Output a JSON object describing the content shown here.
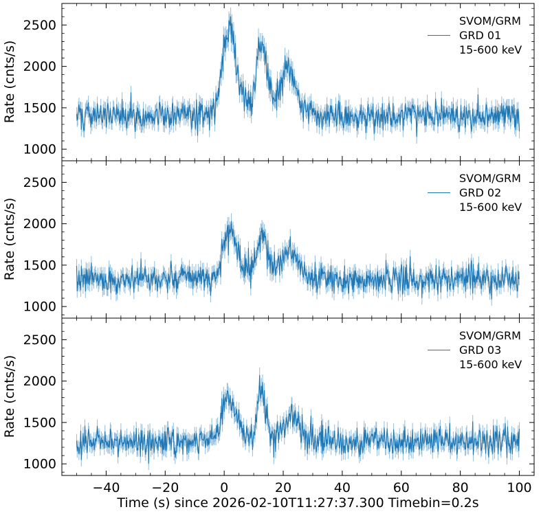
{
  "figure": {
    "background": "#ffffff",
    "axis_color": "#000000",
    "text_color": "#000000"
  },
  "chart_data": {
    "type": "line",
    "title": "",
    "xlabel": "Time (s) since 2026-02-10T11:27:37.300 Timebin=0.2s",
    "ylabel": "Rate (cnts/s)",
    "xlim": [
      -55,
      105
    ],
    "ylim": [
      860,
      2760
    ],
    "xticks": [
      -40,
      -20,
      0,
      20,
      40,
      60,
      80,
      100
    ],
    "yticks": [
      1000,
      1500,
      2000,
      2500
    ],
    "x_minor_step": 5,
    "y_minor_step": 100,
    "grid": false,
    "legend_position": "upper right",
    "line_color": "#1f77b4",
    "errorbar_color": "#1f77b4",
    "errorbar_opacity": 0.45,
    "time_start": -50,
    "time_end": 100,
    "timebin": 0.2,
    "panels": [
      {
        "name": "GRD 01",
        "legend": [
          "SVOM/GRM",
          "GRD 01",
          "15-600 keV"
        ],
        "baseline": 1410,
        "seed": 101,
        "pulses": [
          {
            "t0": 1.3,
            "amp": 1000,
            "rise": 2.0,
            "decay": 2.6
          },
          {
            "t0": 12.2,
            "amp": 700,
            "rise": 1.3,
            "decay": 2.2
          },
          {
            "t0": 21.5,
            "amp": 450,
            "rise": 1.8,
            "decay": 2.5
          },
          {
            "t0": 13.0,
            "amp": 180,
            "rise": 7.0,
            "decay": 9.0
          }
        ]
      },
      {
        "name": "GRD 02",
        "legend": [
          "SVOM/GRM",
          "GRD 02",
          "15-600 keV"
        ],
        "baseline": 1330,
        "seed": 202,
        "pulses": [
          {
            "t0": 1.3,
            "amp": 560,
            "rise": 2.0,
            "decay": 2.6
          },
          {
            "t0": 12.2,
            "amp": 400,
            "rise": 1.4,
            "decay": 2.2
          },
          {
            "t0": 22.0,
            "amp": 280,
            "rise": 2.0,
            "decay": 2.8
          },
          {
            "t0": 13.0,
            "amp": 110,
            "rise": 7.0,
            "decay": 9.0
          }
        ]
      },
      {
        "name": "GRD 03",
        "legend": [
          "SVOM/GRM",
          "GRD 03",
          "15-600 keV"
        ],
        "baseline": 1270,
        "seed": 303,
        "pulses": [
          {
            "t0": 1.4,
            "amp": 540,
            "rise": 2.0,
            "decay": 2.6
          },
          {
            "t0": 12.3,
            "amp": 490,
            "rise": 1.1,
            "decay": 1.6
          },
          {
            "t0": 22.5,
            "amp": 240,
            "rise": 2.0,
            "decay": 3.0
          },
          {
            "t0": 13.0,
            "amp": 90,
            "rise": 7.0,
            "decay": 9.0
          }
        ]
      }
    ]
  }
}
